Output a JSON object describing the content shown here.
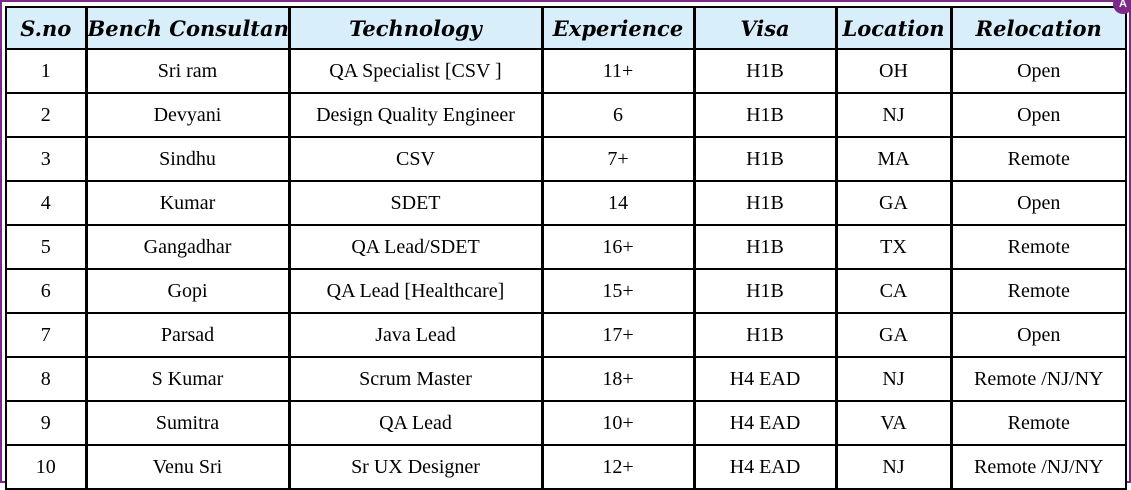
{
  "table": {
    "headers": [
      "S.no",
      "Bench Consultants",
      "Technology",
      "Experience",
      "Visa",
      "Location",
      "Relocation"
    ],
    "rows": [
      [
        "1",
        "Sri ram",
        "QA Specialist [CSV ]",
        "11+",
        "H1B",
        "OH",
        "Open"
      ],
      [
        "2",
        "Devyani",
        "Design Quality Engineer",
        "6",
        "H1B",
        "NJ",
        "Open"
      ],
      [
        "3",
        "Sindhu",
        "CSV",
        "7+",
        "H1B",
        "MA",
        "Remote"
      ],
      [
        "4",
        "Kumar",
        "SDET",
        "14",
        "H1B",
        "GA",
        "Open"
      ],
      [
        "5",
        "Gangadhar",
        "QA Lead/SDET",
        "16+",
        "H1B",
        "TX",
        "Remote"
      ],
      [
        "6",
        "Gopi",
        "QA Lead [Healthcare]",
        "15+",
        "H1B",
        "CA",
        "Remote"
      ],
      [
        "7",
        "Parsad",
        "Java Lead",
        "17+",
        "H1B",
        "GA",
        "Open"
      ],
      [
        "8",
        "S Kumar",
        "Scrum Master",
        "18+",
        "H4 EAD",
        "NJ",
        "Remote /NJ/NY"
      ],
      [
        "9",
        "Sumitra",
        "QA Lead",
        "10+",
        "H4 EAD",
        "VA",
        "Remote"
      ],
      [
        "10",
        "Venu Sri",
        "Sr UX Designer",
        "12+",
        "H4 EAD",
        "NJ",
        "Remote /NJ/NY"
      ]
    ]
  },
  "colors": {
    "header_bg": "#d8eefb",
    "frame_border": "#7b2a8c",
    "grid": "#000000"
  },
  "badge": {
    "label": "A"
  }
}
